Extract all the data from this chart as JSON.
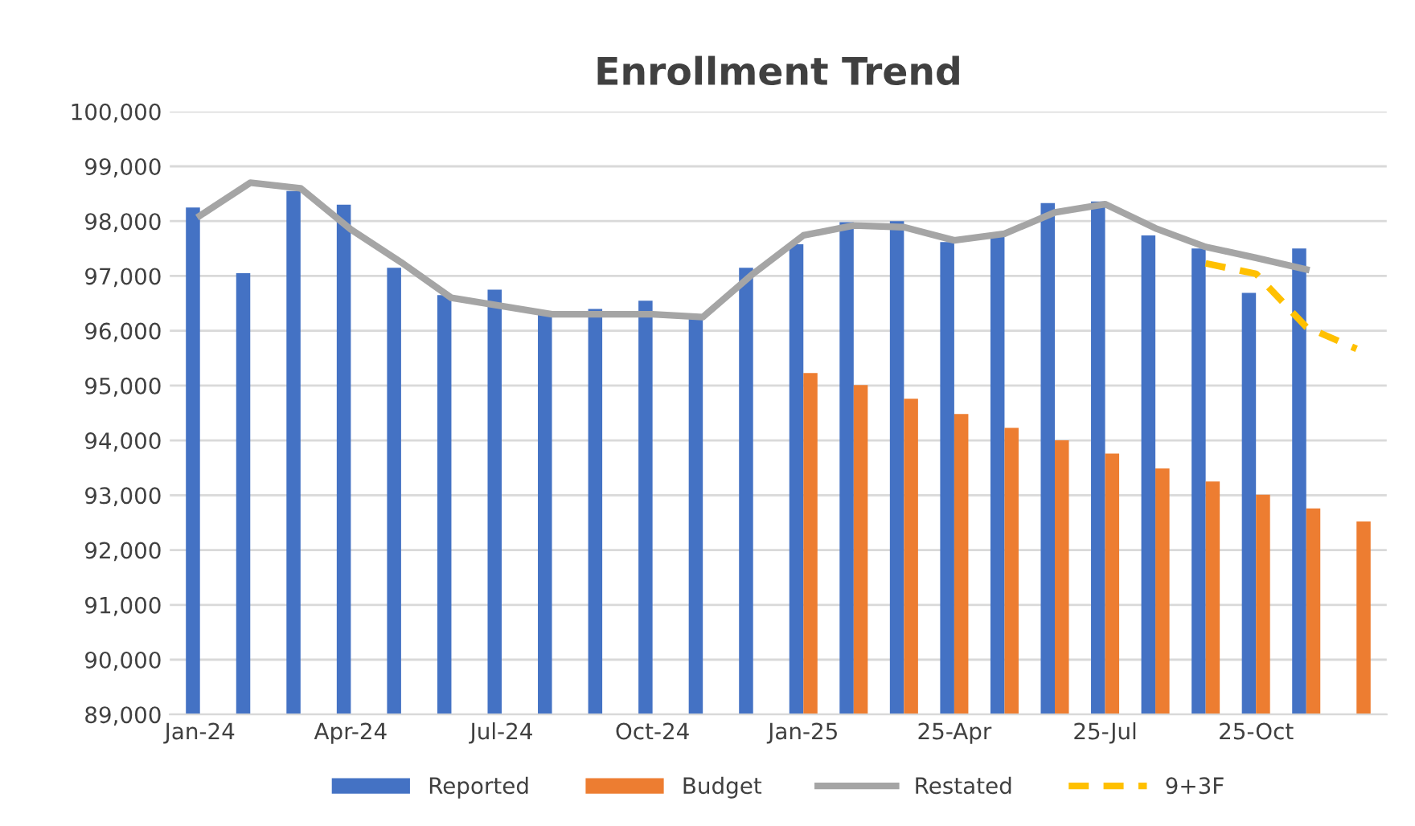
{
  "chart_data": {
    "type": "bar",
    "title": "Enrollment Trend",
    "categories": [
      "Jan-24",
      null,
      null,
      "Apr-24",
      null,
      null,
      "Jul-24",
      null,
      null,
      "Oct-24",
      null,
      null,
      "Jan-25",
      null,
      null,
      "25-Apr",
      null,
      null,
      "25-Jul",
      null,
      null,
      "25-Oct",
      null,
      null
    ],
    "series": [
      {
        "name": "Reported",
        "color": "#4472c4",
        "values": [
          98250,
          97050,
          98550,
          98300,
          97150,
          96650,
          96750,
          96300,
          96400,
          96550,
          96250,
          97150,
          97580,
          97980,
          98000,
          97620,
          97720,
          98330,
          98360,
          97740,
          97500,
          96690,
          97500,
          null
        ]
      },
      {
        "name": "Budget",
        "color": "#ed7d31",
        "values": [
          null,
          null,
          null,
          null,
          null,
          null,
          null,
          null,
          null,
          null,
          null,
          null,
          95230,
          95010,
          94760,
          94480,
          94230,
          94000,
          93760,
          93490,
          93250,
          93010,
          92760,
          92520
        ]
      },
      {
        "name": "Restated",
        "type": "line",
        "color": "#a5a5a5",
        "line_style": "solid",
        "values": [
          98100,
          98700,
          98600,
          97850,
          97250,
          96600,
          96450,
          96300,
          96300,
          96300,
          96250,
          97040,
          97740,
          97920,
          97890,
          97650,
          97770,
          98160,
          98310,
          97870,
          97530,
          97330,
          97120,
          null
        ]
      },
      {
        "name": "9+3F",
        "type": "line",
        "color": "#ffc000",
        "line_style": "dashed",
        "values": [
          null,
          null,
          null,
          null,
          null,
          null,
          null,
          null,
          null,
          null,
          null,
          null,
          null,
          null,
          null,
          null,
          null,
          null,
          null,
          null,
          97230,
          97040,
          96070,
          95670
        ]
      }
    ],
    "ylim": [
      89000,
      100000
    ],
    "yticks": [
      {
        "value": 89000,
        "label": "89,000"
      },
      {
        "value": 90000,
        "label": "90,000"
      },
      {
        "value": 91000,
        "label": "91,000"
      },
      {
        "value": 92000,
        "label": "92,000"
      },
      {
        "value": 93000,
        "label": "93,000"
      },
      {
        "value": 94000,
        "label": "94,000"
      },
      {
        "value": 95000,
        "label": "95,000"
      },
      {
        "value": 96000,
        "label": "96,000"
      },
      {
        "value": 97000,
        "label": "97,000"
      },
      {
        "value": 98000,
        "label": "98,000"
      },
      {
        "value": 99000,
        "label": "99,000"
      },
      {
        "value": 100000,
        "label": "100,000"
      }
    ],
    "grid": "y",
    "legend": "bottom",
    "marker": "none"
  }
}
